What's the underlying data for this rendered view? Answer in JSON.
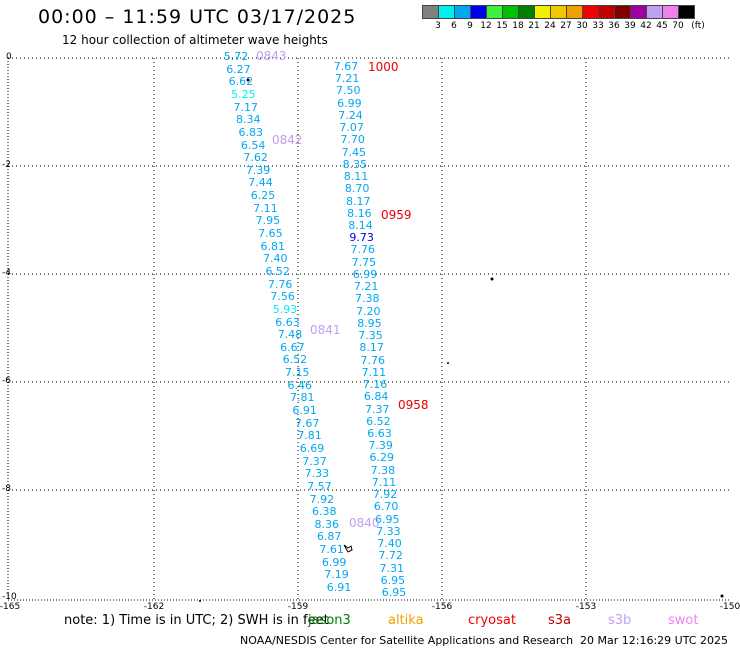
{
  "title": "00:00 – 11:59 UTC 03/17/2025",
  "subtitle": "12 hour collection of altimeter wave heights",
  "scale": {
    "colors": [
      "#808080",
      "#00f0f0",
      "#00a8f0",
      "#0000f0",
      "#40f040",
      "#00c000",
      "#008000",
      "#f0f000",
      "#f0c800",
      "#f0a000",
      "#f00000",
      "#c00000",
      "#800000",
      "#a000a0",
      "#c0a0f0",
      "#f080f0",
      "#000000"
    ],
    "labels": [
      "3",
      "6",
      "9",
      "12",
      "15",
      "18",
      "21",
      "24",
      "27",
      "30",
      "33",
      "36",
      "39",
      "42",
      "45",
      "70",
      "(ft)"
    ]
  },
  "axes": {
    "y_ticks": [
      "0",
      "-2",
      "-4",
      "-6",
      "-8",
      "-10"
    ],
    "x_ticks": [
      "-165",
      "-162",
      "-159",
      "-156",
      "-153",
      "-150"
    ]
  },
  "tracks": [
    {
      "values": [
        "5.72",
        "6.27",
        "6.62",
        "5.25",
        "7.17",
        "8.34",
        "6.83",
        "6.54",
        "7.62",
        "7.39",
        "7.44",
        "6.25",
        "7.11",
        "7.95",
        "7.65",
        "6.81",
        "7.40",
        "6.52",
        "7.76",
        "7.56",
        "5.93",
        "6.63",
        "7.48",
        "6.67",
        "6.52",
        "7.15",
        "6.46",
        "7.81",
        "6.91",
        "7.67",
        "7.81",
        "6.69",
        "7.37",
        "7.33",
        "7.57",
        "7.92",
        "6.38",
        "8.36",
        "6.87",
        "7.61",
        "6.99",
        "7.19",
        "6.91"
      ],
      "colors": [
        "#00a8f0",
        "#00a8f0",
        "#00a8f0",
        "#00f0f0",
        "#00a8f0",
        "#00a8f0",
        "#00a8f0",
        "#00a8f0",
        "#00a8f0",
        "#00a8f0",
        "#00a8f0",
        "#00a8f0",
        "#00a8f0",
        "#00a8f0",
        "#00a8f0",
        "#00a8f0",
        "#00a8f0",
        "#00a8f0",
        "#00a8f0",
        "#00a8f0",
        "#00f0f0",
        "#00a8f0",
        "#00a8f0",
        "#00a8f0",
        "#00a8f0",
        "#00a8f0",
        "#00a8f0",
        "#00a8f0",
        "#00a8f0",
        "#00a8f0",
        "#00a8f0",
        "#00a8f0",
        "#00a8f0",
        "#00a8f0",
        "#00a8f0",
        "#00a8f0",
        "#00a8f0",
        "#00a8f0",
        "#00a8f0",
        "#00a8f0",
        "#00a8f0",
        "#00a8f0",
        "#00a8f0"
      ]
    },
    {
      "values": [
        "7.67",
        "7.21",
        "7.50",
        "6.99",
        "7.24",
        "7.07",
        "7.70",
        "7.45",
        "8.35",
        "8.11",
        "8.70",
        "8.17",
        "8.16",
        "8.14",
        "9.73",
        "7.76",
        "7.75",
        "6.99",
        "7.21",
        "7.38",
        "7.20",
        "8.95",
        "7.35",
        "8.17",
        "7.76",
        "7.11",
        "7.16",
        "6.84",
        "7.37",
        "6.52",
        "6.63",
        "7.39",
        "6.29",
        "7.38",
        "7.11",
        "7.92",
        "6.70",
        "6.95",
        "7.33",
        "7.40",
        "7.72",
        "7.31",
        "6.95",
        "6.95"
      ],
      "colors": [
        "#00a8f0",
        "#00a8f0",
        "#00a8f0",
        "#00a8f0",
        "#00a8f0",
        "#00a8f0",
        "#00a8f0",
        "#00a8f0",
        "#00a8f0",
        "#00a8f0",
        "#00a8f0",
        "#00a8f0",
        "#00a8f0",
        "#00a8f0",
        "#0000f0",
        "#00a8f0",
        "#00a8f0",
        "#00a8f0",
        "#00a8f0",
        "#00a8f0",
        "#00a8f0",
        "#00a8f0",
        "#00a8f0",
        "#00a8f0",
        "#00a8f0",
        "#00a8f0",
        "#00a8f0",
        "#00a8f0",
        "#00a8f0",
        "#00a8f0",
        "#00a8f0",
        "#00a8f0",
        "#00a8f0",
        "#00a8f0",
        "#00a8f0",
        "#00a8f0",
        "#00a8f0",
        "#00a8f0",
        "#00a8f0",
        "#00a8f0",
        "#00a8f0",
        "#00a8f0",
        "#00a8f0",
        "#00a8f0"
      ]
    }
  ],
  "pass_labels": [
    {
      "text": "0843",
      "color": "#c0a0f0"
    },
    {
      "text": "0842",
      "color": "#c0a0f0"
    },
    {
      "text": "0841",
      "color": "#c0a0f0"
    },
    {
      "text": "0840",
      "color": "#c0a0f0"
    },
    {
      "text": "1000",
      "color": "#f00000"
    },
    {
      "text": "0959",
      "color": "#f00000"
    },
    {
      "text": "0958",
      "color": "#f00000"
    }
  ],
  "note": "note: 1) Time is in UTC; 2) SWH is in feet",
  "legend": [
    {
      "label": "jason3",
      "color": "#008000"
    },
    {
      "label": "altika",
      "color": "#f0a000"
    },
    {
      "label": "cryosat",
      "color": "#f00000"
    },
    {
      "label": "s3a",
      "color": "#c00000"
    },
    {
      "label": "s3b",
      "color": "#c0a0f0"
    },
    {
      "label": "swot",
      "color": "#f080f0"
    }
  ],
  "footer": "NOAA/NESDIS Center for Satellite Applications and Research",
  "footer_time": "20 Mar 12:16:29 UTC 2025"
}
